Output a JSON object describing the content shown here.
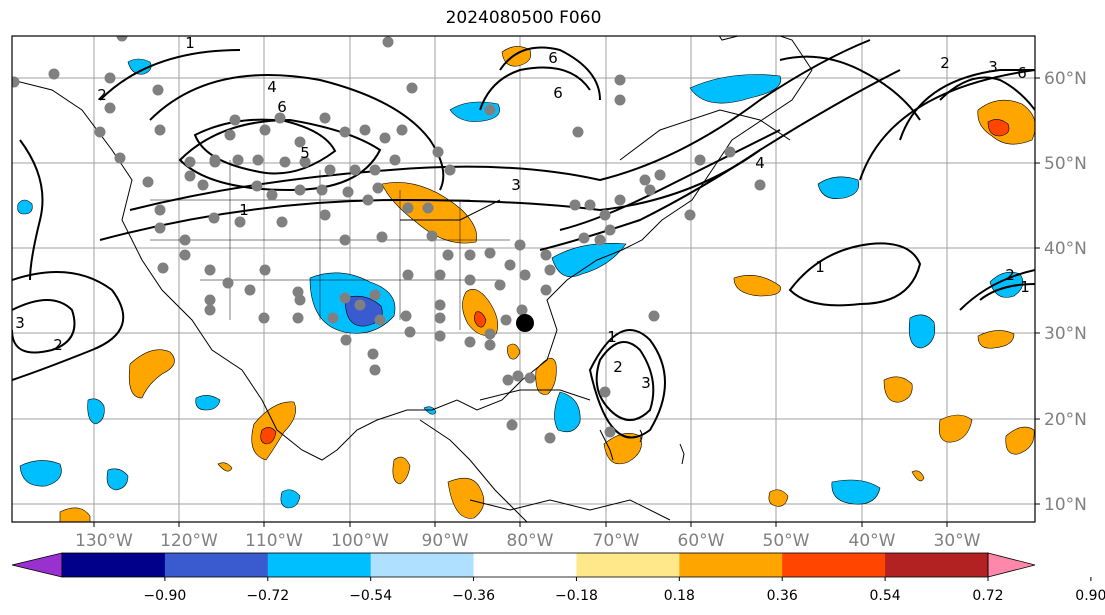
{
  "title": "2024080500 F060",
  "map": {
    "lat_labels": [
      "60°N",
      "50°N",
      "40°N",
      "30°N",
      "20°N",
      "10°N"
    ],
    "lon_labels": [
      "130°W",
      "120°W",
      "110°W",
      "100°W",
      "90°W",
      "80°W",
      "70°W",
      "60°W",
      "50°W",
      "40°W",
      "30°W"
    ],
    "contour_labels": [
      "1",
      "2",
      "4",
      "6",
      "5",
      "6",
      "6",
      "2",
      "3",
      "6",
      "4",
      "3",
      "1",
      "1",
      "3",
      "2",
      "1",
      "2",
      "3",
      "2",
      "1"
    ],
    "marked_location": "large-black-dot"
  },
  "colorbar": {
    "ticks": [
      "−0.90",
      "−0.72",
      "−0.54",
      "−0.36",
      "−0.18",
      "0.18",
      "0.36",
      "0.54",
      "0.72",
      "0.90"
    ],
    "colors": [
      "#9b30d0",
      "#00008b",
      "#3a5bd0",
      "#00bfff",
      "#b0e0ff",
      "#ffffff",
      "#ffe88a",
      "#ffa500",
      "#ff4500",
      "#b22222",
      "#ff88aa"
    ]
  }
}
